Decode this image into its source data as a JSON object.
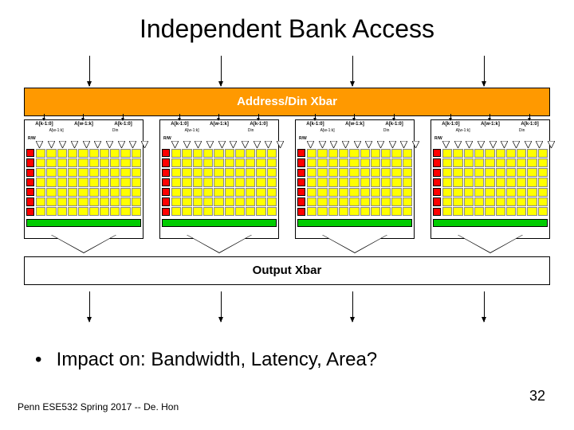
{
  "title": "Independent Bank Access",
  "xbar_top_label": "Address/Din Xbar",
  "xbar_bottom_label": "Output Xbar",
  "bullet_text": "Impact on: Bandwidth, Latency, Area?",
  "footer_text": "Penn ESE532 Spring 2017 -- De. Hon",
  "page_number": "32",
  "colors": {
    "xbar_top_bg": "#ff9900",
    "xbar_top_text": "#ffffff",
    "xbar_bottom_bg": "#ffffff",
    "xbar_bottom_text": "#000000",
    "red_cell": "#ff0000",
    "yellow_cell": "#ffff00",
    "green_bar": "#00cc00",
    "bank_bg": "#ffffff"
  },
  "num_banks": 4,
  "bank": {
    "top_labels": [
      "A[k-1:0]",
      "A[w-1:k]",
      "A[k-1:0]"
    ],
    "sub_labels": [
      "A[w-1:k]",
      "Din"
    ],
    "rw_label": "R/W",
    "grid_cols": 10,
    "grid_rows": 7,
    "red_rows": 7,
    "top_triangles": 10
  },
  "top_arrow_count": 4,
  "bottom_arrow_count": 4
}
